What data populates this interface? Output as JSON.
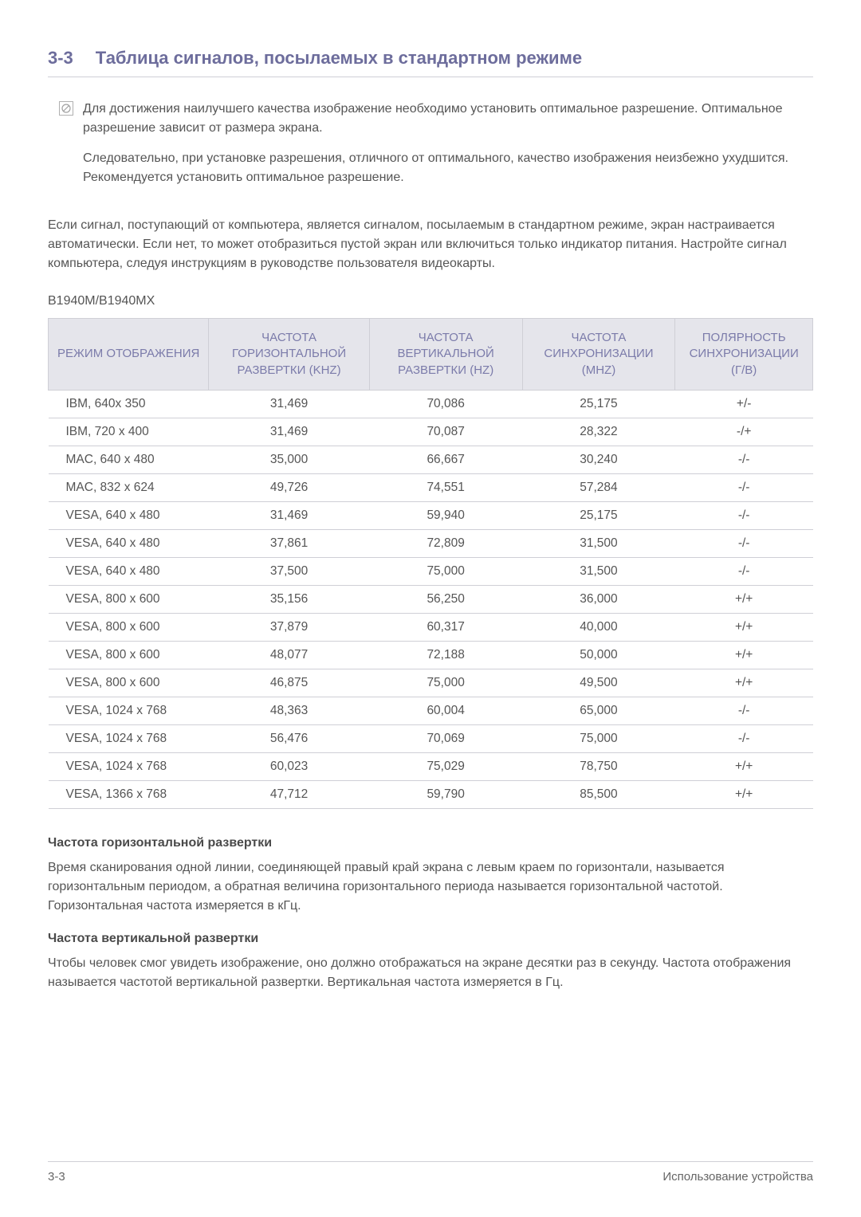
{
  "header": {
    "number": "3-3",
    "title": "Таблица сигналов, посылаемых в стандартном режиме"
  },
  "note": {
    "p1": "Для достижения наилучшего качества изображение необходимо установить оптимальное разрешение. Оптимальное разрешение зависит от размера экрана.",
    "p2": "Следовательно, при установке разрешения, отличного от оптимального, качество изображения неизбежно ухудшится. Рекомендуется установить оптимальное разрешение."
  },
  "body_para": "Если сигнал, поступающий от компьютера, является сигналом, посылаемым в стандартном режиме, экран настраивается автоматически. Если нет, то может отобразиться пустой экран или включиться только индикатор питания. Настройте сигнал компьютера, следуя инструкциям в руководстве пользователя видеокарты.",
  "model": "B1940M/B1940MX",
  "table": {
    "headers": {
      "c0": "РЕЖИМ ОТОБРАЖЕНИЯ",
      "c1": "ЧАСТОТА ГОРИЗОНТАЛЬНОЙ РАЗВЕРТКИ (KHZ)",
      "c2": "ЧАСТОТА ВЕРТИКАЛЬНОЙ РАЗВЕРТКИ (HZ)",
      "c3": "ЧАСТОТА СИНХРОНИЗАЦИИ (MHZ)",
      "c4": "ПОЛЯРНОСТЬ СИНХРОНИЗАЦИИ (Г/В)"
    },
    "rows": [
      {
        "c0": "IBM, 640x 350",
        "c1": "31,469",
        "c2": "70,086",
        "c3": "25,175",
        "c4": "+/-"
      },
      {
        "c0": "IBM, 720 x 400",
        "c1": "31,469",
        "c2": "70,087",
        "c3": "28,322",
        "c4": "-/+"
      },
      {
        "c0": "MAC, 640 x 480",
        "c1": "35,000",
        "c2": "66,667",
        "c3": "30,240",
        "c4": "-/-"
      },
      {
        "c0": "MAC, 832 x 624",
        "c1": "49,726",
        "c2": "74,551",
        "c3": "57,284",
        "c4": "-/-"
      },
      {
        "c0": "VESA, 640 x 480",
        "c1": "31,469",
        "c2": "59,940",
        "c3": "25,175",
        "c4": "-/-"
      },
      {
        "c0": "VESA, 640 x 480",
        "c1": "37,861",
        "c2": "72,809",
        "c3": "31,500",
        "c4": "-/-"
      },
      {
        "c0": "VESA, 640 x 480",
        "c1": "37,500",
        "c2": "75,000",
        "c3": "31,500",
        "c4": "-/-"
      },
      {
        "c0": "VESA, 800 x 600",
        "c1": "35,156",
        "c2": "56,250",
        "c3": "36,000",
        "c4": "+/+"
      },
      {
        "c0": "VESA, 800 x 600",
        "c1": "37,879",
        "c2": "60,317",
        "c3": "40,000",
        "c4": "+/+"
      },
      {
        "c0": "VESA, 800 x 600",
        "c1": "48,077",
        "c2": "72,188",
        "c3": "50,000",
        "c4": "+/+"
      },
      {
        "c0": "VESA, 800 x 600",
        "c1": "46,875",
        "c2": "75,000",
        "c3": "49,500",
        "c4": "+/+"
      },
      {
        "c0": "VESA, 1024 x 768",
        "c1": "48,363",
        "c2": "60,004",
        "c3": "65,000",
        "c4": "-/-"
      },
      {
        "c0": "VESA, 1024 x 768",
        "c1": "56,476",
        "c2": "70,069",
        "c3": "75,000",
        "c4": "-/-"
      },
      {
        "c0": "VESA, 1024 x 768",
        "c1": "60,023",
        "c2": "75,029",
        "c3": "78,750",
        "c4": "+/+"
      },
      {
        "c0": "VESA, 1366 x 768",
        "c1": "47,712",
        "c2": "59,790",
        "c3": "85,500",
        "c4": "+/+"
      }
    ]
  },
  "sub1": {
    "head": "Частота горизонтальной развертки",
    "text": "Время сканирования одной линии, соединяющей правый край экрана с левым краем по горизонтали, называется горизонтальным периодом, а обратная величина горизонтального периода называется горизонтальной частотой. Горизонтальная частота измеряется в кГц."
  },
  "sub2": {
    "head": "Частота вертикальной развертки",
    "text": "Чтобы человек смог увидеть изображение, оно должно отображаться на экране десятки раз в секунду. Частота отображения называется частотой вертикальной развертки. Вертикальная частота измеряется в Гц."
  },
  "footer": {
    "left": "3-3",
    "right": "Использование устройства"
  },
  "col_widths": [
    "21%",
    "21%",
    "20%",
    "20%",
    "18%"
  ]
}
